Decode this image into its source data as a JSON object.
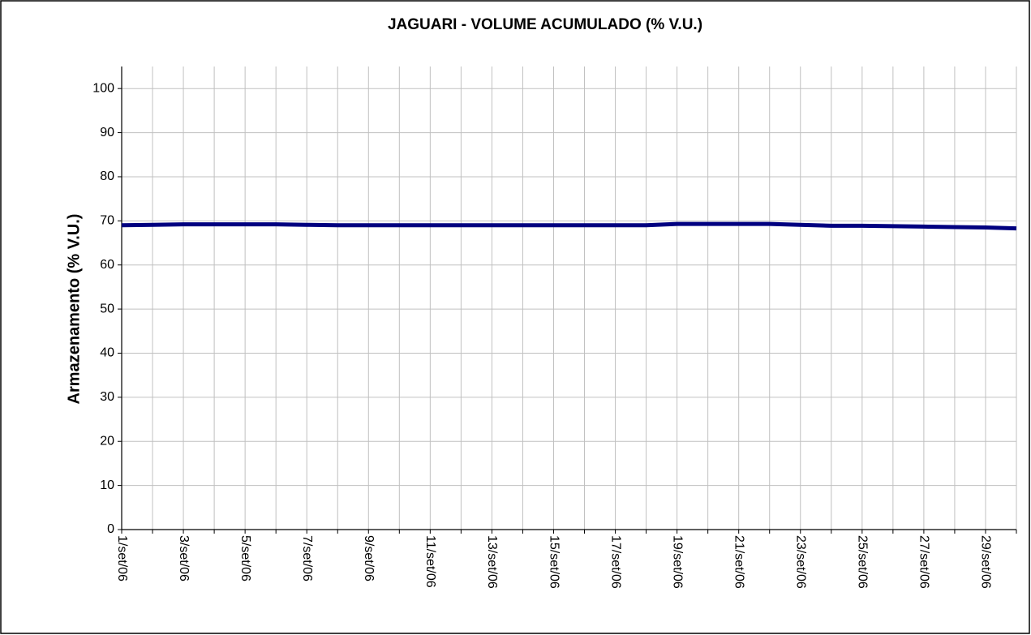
{
  "chart_data": {
    "type": "line",
    "title": "JAGUARI - VOLUME ACUMULADO (% V.U.)",
    "y_label": "Armazenamento (% V.U.)",
    "categories": [
      "1/set/06",
      null,
      "3/set/06",
      null,
      "5/set/06",
      null,
      "7/set/06",
      null,
      "9/set/06",
      null,
      "11/set/06",
      null,
      "13/set/06",
      null,
      "15/set/06",
      null,
      "17/set/06",
      null,
      "19/set/06",
      null,
      "21/set/06",
      null,
      "23/set/06",
      null,
      "25/set/06",
      null,
      "27/set/06",
      null,
      "29/set/06",
      null
    ],
    "series": [
      {
        "name": "Armazenamento",
        "color": "#000080",
        "values": [
          69.0,
          69.1,
          69.2,
          69.2,
          69.2,
          69.2,
          69.1,
          69.0,
          69.0,
          69.0,
          69.0,
          69.0,
          69.0,
          69.0,
          69.0,
          69.0,
          69.0,
          69.0,
          69.3,
          69.3,
          69.3,
          69.3,
          69.1,
          68.9,
          68.9,
          68.8,
          68.7,
          68.6,
          68.5,
          68.3
        ]
      }
    ],
    "ylim": [
      0,
      105
    ],
    "yticks": [
      0,
      10,
      20,
      30,
      40,
      50,
      60,
      70,
      80,
      90,
      100
    ],
    "grid": true
  }
}
